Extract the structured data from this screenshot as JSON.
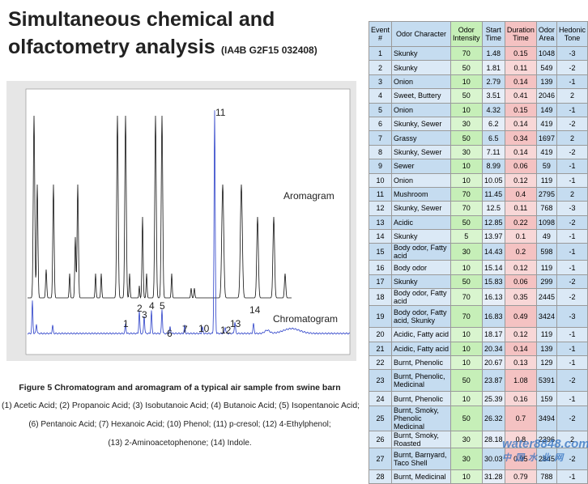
{
  "title": {
    "line1": "Simultaneous chemical and",
    "line2": "olfactometry analysis",
    "code": "(IA4B G2F15 032408)"
  },
  "figure": {
    "peak_labels": [
      "1",
      "2",
      "3",
      "4",
      "5",
      "6",
      "7",
      "10",
      "11",
      "12",
      "13",
      "14"
    ],
    "trace_labels": [
      "Aromagram",
      "Chromatogram"
    ],
    "caption": "Figure 5 Chromatogram and aromagram of a typical air sample from swine barn",
    "legend_lines": [
      "(1) Acetic Acid; (2) Propanoic Acid; (3) Isobutanoic Acid; (4) Butanoic Acid; (5) Isopentanoic Acid;",
      "(6) Pentanoic Acid; (7) Hexanoic Acid; (10) Phenol; (11) p-cresol; (12) 4-Ethylphenol;",
      "(13) 2-Aminoacetophenone; (14) Indole."
    ]
  },
  "table": {
    "header": [
      "Event #",
      "Odor Character",
      "Odor Intensity",
      "Start Time",
      "Duration Time",
      "Odor Area",
      "Hedonic Tone"
    ],
    "rows": [
      [
        1,
        "Skunky",
        70,
        1.48,
        0.15,
        1048,
        -3
      ],
      [
        2,
        "Skunky",
        50,
        1.81,
        0.11,
        549,
        -2
      ],
      [
        3,
        "Onion",
        10,
        2.79,
        0.14,
        139,
        -1
      ],
      [
        4,
        "Sweet, Buttery",
        50,
        3.51,
        0.41,
        2046,
        2
      ],
      [
        5,
        "Onion",
        10,
        4.32,
        0.15,
        149,
        -1
      ],
      [
        6,
        "Skunky, Sewer",
        30,
        6.2,
        0.14,
        419,
        -2
      ],
      [
        7,
        "Grassy",
        50,
        6.5,
        0.34,
        1697,
        2
      ],
      [
        8,
        "Skunky, Sewer",
        30,
        7.11,
        0.14,
        419,
        -2
      ],
      [
        9,
        "Sewer",
        10,
        8.99,
        0.06,
        59,
        -1
      ],
      [
        10,
        "Onion",
        10,
        10.05,
        0.12,
        119,
        -1
      ],
      [
        11,
        "Mushroom",
        70,
        11.45,
        0.4,
        2795,
        2
      ],
      [
        12,
        "Skunky, Sewer",
        70,
        12.5,
        0.11,
        768,
        -3
      ],
      [
        13,
        "Acidic",
        50,
        12.85,
        0.22,
        1098,
        -2
      ],
      [
        14,
        "Skunky",
        5,
        13.97,
        0.1,
        49,
        -1
      ],
      [
        15,
        "Body odor, Fatty acid",
        30,
        14.43,
        0.2,
        598,
        -1
      ],
      [
        16,
        "Body odor",
        10,
        15.14,
        0.12,
        119,
        -1
      ],
      [
        17,
        "Skunky",
        50,
        15.83,
        0.06,
        299,
        -2
      ],
      [
        18,
        "Body odor, Fatty acid",
        70,
        16.13,
        0.35,
        2445,
        -2
      ],
      [
        19,
        "Body odor, Fatty acid, Skunky",
        70,
        16.83,
        0.49,
        3424,
        -3
      ],
      [
        20,
        "Acidic, Fatty acid",
        10,
        18.17,
        0.12,
        119,
        -1
      ],
      [
        21,
        "Acidic, Fatty acid",
        10,
        20.34,
        0.14,
        139,
        -1
      ],
      [
        22,
        "Burnt, Phenolic",
        10,
        20.67,
        0.13,
        129,
        -1
      ],
      [
        23,
        "Burnt, Phenolic, Medicinal",
        50,
        23.87,
        1.08,
        5391,
        -2
      ],
      [
        24,
        "Burnt, Phenolic",
        10,
        25.39,
        0.16,
        159,
        -1
      ],
      [
        25,
        "Burnt, Smoky, Phenolic Medicinal",
        50,
        26.32,
        0.7,
        3494,
        -2
      ],
      [
        26,
        "Burnt, Smoky, Roasted",
        30,
        28.18,
        0.8,
        2396,
        2
      ],
      [
        27,
        "Burnt, Barnyard, Taco Shell",
        30,
        30.03,
        0.95,
        2845,
        -2
      ],
      [
        28,
        "Burnt, Medicinal",
        10,
        31.28,
        0.79,
        788,
        -1
      ]
    ]
  },
  "watermark": [
    "water8848.com",
    "中 国 水 业 网"
  ]
}
